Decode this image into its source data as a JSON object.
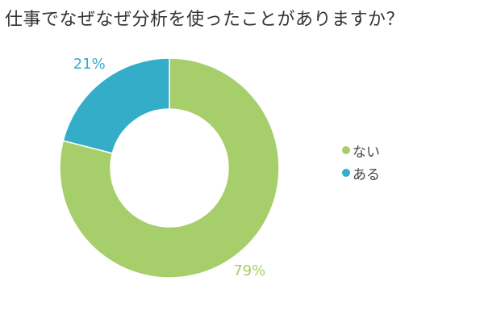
{
  "chart_data": {
    "type": "pie",
    "title": "仕事でなぜなぜ分析を使ったことがありますか？",
    "series": [
      {
        "name": "ない",
        "value": 79,
        "label": "79%",
        "color": "#a6ce6a"
      },
      {
        "name": "ある",
        "value": 21,
        "label": "21%",
        "color": "#34adc9"
      }
    ],
    "donut": true,
    "legend_position": "right"
  }
}
